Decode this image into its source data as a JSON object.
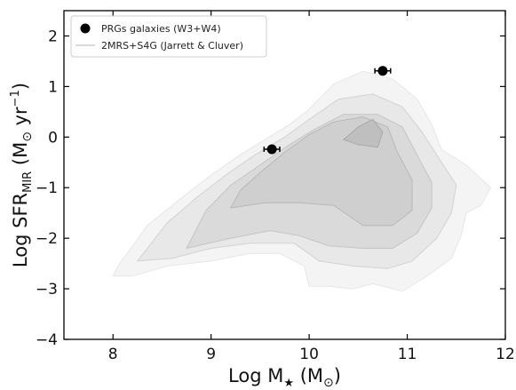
{
  "chart_data": {
    "type": "scatter",
    "title": "",
    "xlabel": {
      "main": "Log M",
      "star": "★",
      "units_open": " (M",
      "sun": "⊙",
      "units_close": ")"
    },
    "ylabel": {
      "main": "Log SFR",
      "sub": "MIR",
      "units_open": " (M",
      "sun": "⊙",
      "units_mid": " yr",
      "sup": "−1",
      "units_close": ")"
    },
    "xlim": [
      7.5,
      12
    ],
    "ylim": [
      -4,
      2.5
    ],
    "x_ticks": [
      8,
      9,
      10,
      11,
      12
    ],
    "x_tick_labels": [
      "8",
      "9",
      "10",
      "11",
      "12"
    ],
    "y_ticks": [
      -4,
      -3,
      -2,
      -1,
      0,
      1,
      2
    ],
    "y_tick_labels": [
      "−4",
      "−3",
      "−2",
      "−1",
      "0",
      "1",
      "2"
    ],
    "grid": false,
    "legend_position": "top-left",
    "series": [
      {
        "name": "PRGs galaxies (W3+W4)",
        "kind": "points",
        "color": "#000000",
        "points": [
          {
            "x": 9.62,
            "y": -0.24,
            "xerr": 0.08
          },
          {
            "x": 10.75,
            "y": 1.31,
            "xerr": 0.08
          }
        ]
      },
      {
        "name": "2MRS+S4G (Jarrett & Cluver)",
        "kind": "density-contours",
        "color": "#d9d9d9",
        "levels": [
          {
            "fill": "#f4f4f4",
            "stroke": "#e6e6e6",
            "polygon": [
              [
                8.05,
                -2.55
              ],
              [
                8.0,
                -2.75
              ],
              [
                8.2,
                -2.75
              ],
              [
                8.55,
                -2.55
              ],
              [
                9.0,
                -2.45
              ],
              [
                9.4,
                -2.3
              ],
              [
                9.7,
                -2.3
              ],
              [
                9.95,
                -2.55
              ],
              [
                10.0,
                -2.95
              ],
              [
                10.2,
                -2.95
              ],
              [
                10.45,
                -3.0
              ],
              [
                10.65,
                -2.9
              ],
              [
                10.95,
                -3.05
              ],
              [
                11.2,
                -2.75
              ],
              [
                11.45,
                -2.4
              ],
              [
                11.55,
                -1.95
              ],
              [
                11.6,
                -1.5
              ],
              [
                11.75,
                -1.35
              ],
              [
                11.85,
                -1.0
              ],
              [
                11.6,
                -0.55
              ],
              [
                11.35,
                -0.25
              ],
              [
                11.25,
                0.25
              ],
              [
                11.1,
                0.75
              ],
              [
                10.85,
                1.15
              ],
              [
                10.55,
                1.3
              ],
              [
                10.25,
                1.05
              ],
              [
                10.0,
                0.55
              ],
              [
                9.8,
                0.25
              ],
              [
                9.55,
                -0.05
              ],
              [
                9.3,
                -0.35
              ],
              [
                9.0,
                -0.75
              ],
              [
                8.7,
                -1.2
              ],
              [
                8.35,
                -1.75
              ]
            ]
          },
          {
            "fill": "#e8e8e8",
            "stroke": "#d2d2d2",
            "polygon": [
              [
                8.25,
                -2.45
              ],
              [
                8.6,
                -2.4
              ],
              [
                9.0,
                -2.2
              ],
              [
                9.4,
                -2.1
              ],
              [
                9.85,
                -2.1
              ],
              [
                10.1,
                -2.45
              ],
              [
                10.45,
                -2.55
              ],
              [
                10.8,
                -2.6
              ],
              [
                11.05,
                -2.45
              ],
              [
                11.3,
                -2.0
              ],
              [
                11.45,
                -1.5
              ],
              [
                11.5,
                -0.95
              ],
              [
                11.35,
                -0.5
              ],
              [
                11.15,
                0.1
              ],
              [
                10.95,
                0.6
              ],
              [
                10.65,
                0.85
              ],
              [
                10.3,
                0.75
              ],
              [
                10.0,
                0.35
              ],
              [
                9.75,
                0.0
              ],
              [
                9.45,
                -0.35
              ],
              [
                9.15,
                -0.75
              ],
              [
                8.85,
                -1.2
              ],
              [
                8.55,
                -1.7
              ]
            ]
          },
          {
            "fill": "#dadada",
            "stroke": "#c4c4c4",
            "polygon": [
              [
                8.75,
                -2.2
              ],
              [
                9.2,
                -2.0
              ],
              [
                9.6,
                -1.85
              ],
              [
                9.9,
                -1.95
              ],
              [
                10.2,
                -2.15
              ],
              [
                10.55,
                -2.2
              ],
              [
                10.85,
                -2.2
              ],
              [
                11.1,
                -1.9
              ],
              [
                11.25,
                -1.4
              ],
              [
                11.25,
                -0.9
              ],
              [
                11.1,
                -0.35
              ],
              [
                10.95,
                0.2
              ],
              [
                10.7,
                0.45
              ],
              [
                10.35,
                0.45
              ],
              [
                10.05,
                0.15
              ],
              [
                9.8,
                -0.15
              ],
              [
                9.5,
                -0.55
              ],
              [
                9.2,
                -0.95
              ],
              [
                8.95,
                -1.45
              ]
            ]
          },
          {
            "fill": "#cfcfcf",
            "stroke": "#b8b8b8",
            "polygon": [
              [
                9.2,
                -1.4
              ],
              [
                9.55,
                -1.3
              ],
              [
                9.9,
                -1.3
              ],
              [
                10.25,
                -1.35
              ],
              [
                10.55,
                -1.75
              ],
              [
                10.85,
                -1.75
              ],
              [
                11.05,
                -1.45
              ],
              [
                11.05,
                -0.85
              ],
              [
                10.9,
                -0.3
              ],
              [
                10.8,
                0.2
              ],
              [
                10.55,
                0.4
              ],
              [
                10.25,
                0.3
              ],
              [
                10.0,
                0.05
              ],
              [
                9.75,
                -0.3
              ],
              [
                9.5,
                -0.7
              ],
              [
                9.3,
                -1.05
              ]
            ]
          },
          {
            "fill": "#bfbfbf",
            "stroke": "#a8a8a8",
            "polygon": [
              [
                10.35,
                -0.05
              ],
              [
                10.5,
                0.2
              ],
              [
                10.65,
                0.35
              ],
              [
                10.75,
                0.1
              ],
              [
                10.7,
                -0.2
              ],
              [
                10.5,
                -0.15
              ]
            ]
          }
        ]
      }
    ]
  }
}
